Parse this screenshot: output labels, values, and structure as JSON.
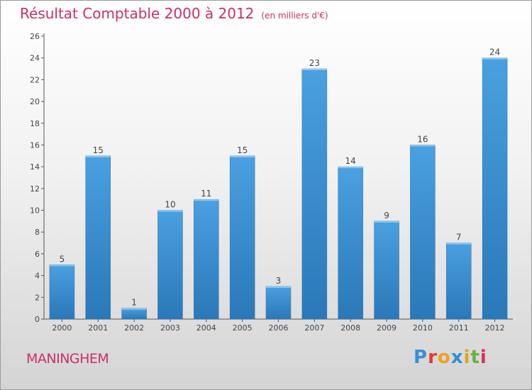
{
  "header": {
    "title": "Résultat Comptable 2000 à 2012",
    "unit": "(en milliers d'€)"
  },
  "footer": {
    "town": "MANINGHEM",
    "logo_letters": [
      "P",
      "r",
      "o",
      "x",
      "i",
      "t",
      "i"
    ],
    "logo_colors": [
      "#3a8fd6",
      "#e63a2e",
      "#f0a020",
      "#2e8fd6",
      "#e6a020",
      "#6ab23a",
      "#d62e5a"
    ]
  },
  "chart_data": {
    "type": "bar",
    "categories": [
      "2000",
      "2001",
      "2002",
      "2003",
      "2004",
      "2005",
      "2006",
      "2007",
      "2008",
      "2009",
      "2010",
      "2011",
      "2012"
    ],
    "values": [
      5,
      15,
      1,
      10,
      11,
      15,
      3,
      23,
      14,
      9,
      16,
      7,
      24
    ],
    "ylim": [
      0,
      26
    ],
    "yticks": [
      0,
      2,
      4,
      6,
      8,
      10,
      12,
      14,
      16,
      18,
      20,
      22,
      24,
      26
    ],
    "grid": false,
    "bar_color": "#4aa0e0",
    "bar_color_dark": "#2a78b8",
    "text_color": "#444444"
  }
}
